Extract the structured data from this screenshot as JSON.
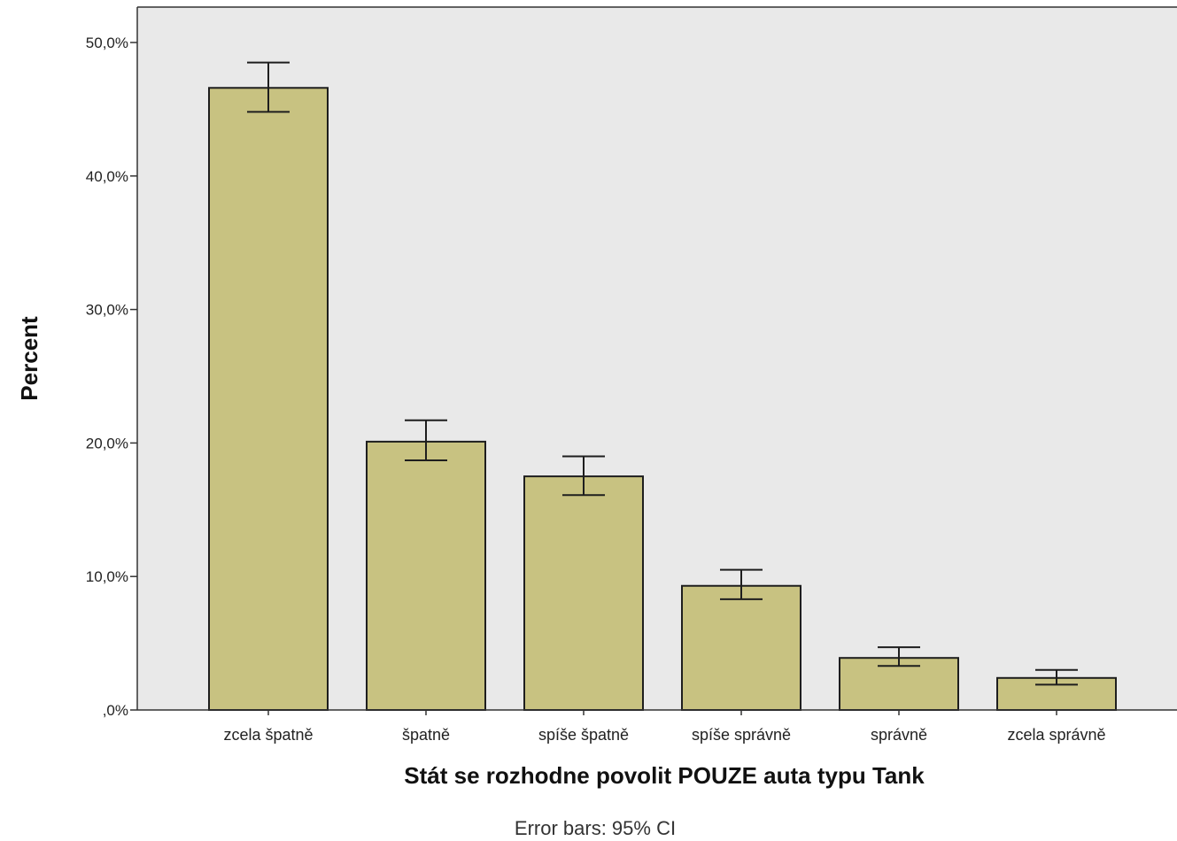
{
  "chart_data": {
    "type": "bar",
    "categories": [
      "zcela špatně",
      "špatně",
      "spíše špatně",
      "spíše správně",
      "správně",
      "zcela správně"
    ],
    "values": [
      46.6,
      20.1,
      17.5,
      9.3,
      3.9,
      2.4
    ],
    "error_bars": {
      "lower": [
        44.8,
        18.7,
        16.1,
        8.3,
        3.3,
        1.9
      ],
      "upper": [
        48.5,
        21.7,
        19.0,
        10.5,
        4.7,
        3.0
      ]
    },
    "ylim": [
      0,
      50
    ],
    "yticks": [
      0,
      10,
      20,
      30,
      40,
      50
    ],
    "ytick_labels": [
      ",0%",
      "10,0%",
      "20,0%",
      "30,0%",
      "40,0%",
      "50,0%"
    ],
    "ylabel": "Percent",
    "xlabel": "Stát se rozhodne povolit POUZE auta typu Tank",
    "footnote": "Error bars: 95% CI",
    "grid": false,
    "colors": {
      "bar_fill": "#c8c281",
      "bar_stroke": "#1e1e1e",
      "plot_background": "#e9e9e9"
    }
  }
}
